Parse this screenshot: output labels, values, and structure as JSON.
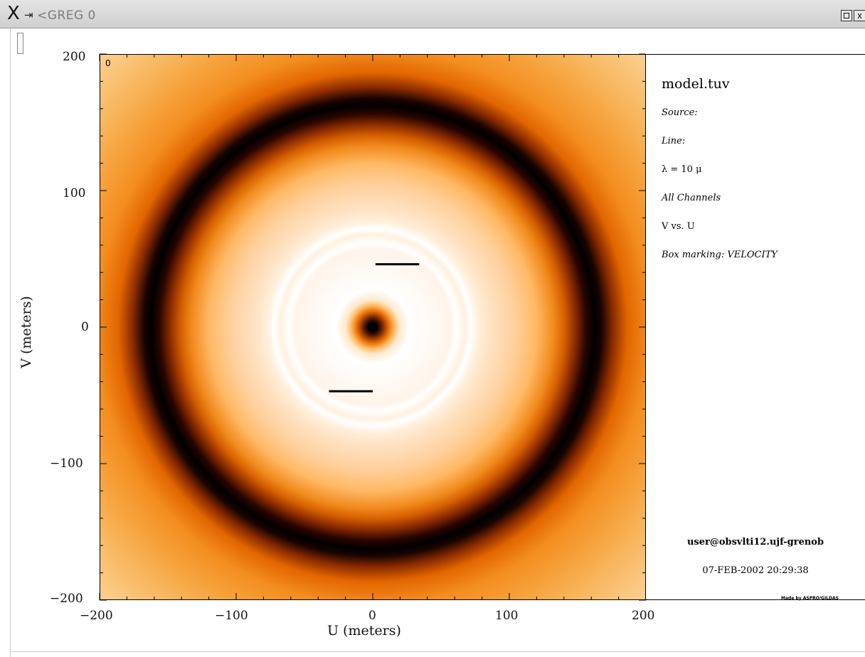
{
  "window": {
    "title": "<GREG  0",
    "x_glyph": "X",
    "pin_glyph": "⇥",
    "close_glyph": "x"
  },
  "plot": {
    "panel_letter": "0",
    "x_ticks": [
      "−200",
      "−100",
      "0",
      "100",
      "200"
    ],
    "y_ticks": [
      "200",
      "100",
      "0",
      "−100",
      "−200"
    ],
    "x_label": "U (meters)",
    "y_label": "V (meters)"
  },
  "chart_data": {
    "type": "heatmap",
    "x_range": [
      -200,
      200
    ],
    "y_range": [
      -200,
      200
    ],
    "xlabel": "U (meters)",
    "ylabel": "V (meters)",
    "x_tick_values": [
      -200,
      -100,
      0,
      100,
      200
    ],
    "y_tick_values": [
      -200,
      -100,
      0,
      100,
      200
    ],
    "colormap": [
      "#000000",
      "#8c2c00",
      "#e26600",
      "#ffb964",
      "#ffffff"
    ],
    "markers": [
      {
        "x1": 2,
        "x2": 34,
        "y": 46
      },
      {
        "x1": -32,
        "x2": 0,
        "y": -47
      }
    ]
  },
  "info": {
    "filename": "model.tuv",
    "source": "Source:",
    "line": "Line:",
    "lambda": "λ = 10 μ",
    "channels": "All Channels",
    "axes": "V vs. U",
    "box_marking": "Box marking: VELOCITY",
    "user": "user@obsvlti12.ujf-grenob",
    "timestamp": "07-FEB-2002 20:29:38"
  },
  "credit": "Made by ASPRO/GILDAS"
}
